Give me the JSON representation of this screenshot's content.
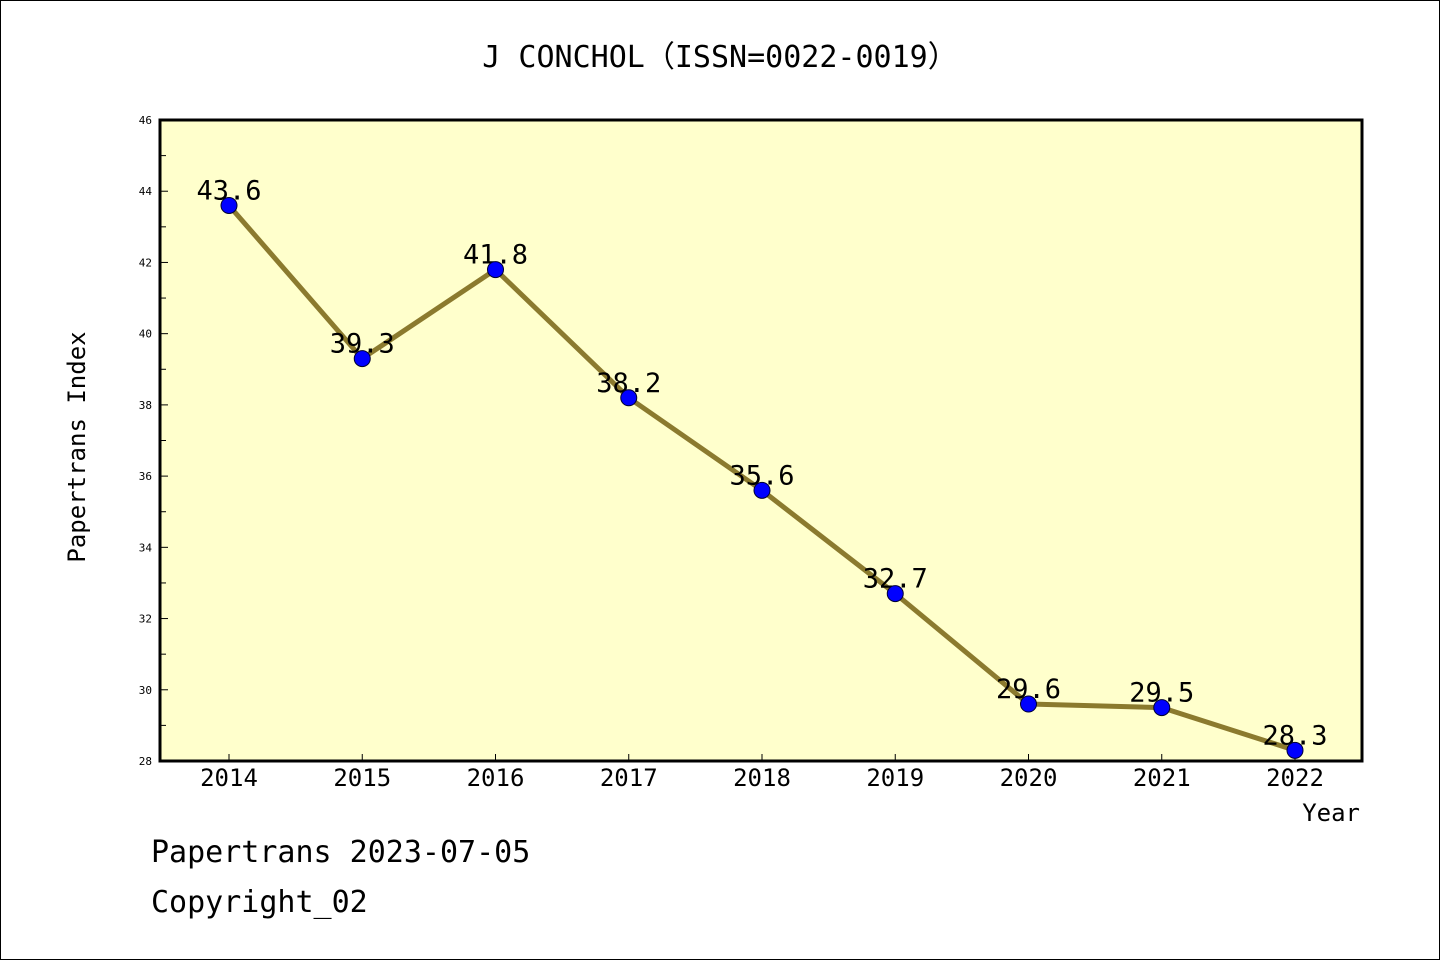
{
  "chart_data": {
    "type": "line",
    "title": "J CONCHOL（ISSN=0022-0019）",
    "xlabel": "Year",
    "ylabel": "Papertrans Index",
    "categories": [
      "2014",
      "2015",
      "2016",
      "2017",
      "2018",
      "2019",
      "2020",
      "2021",
      "2022"
    ],
    "series": [
      {
        "values": [
          43.6,
          39.3,
          41.8,
          38.2,
          35.6,
          32.7,
          29.6,
          29.5,
          28.3
        ],
        "data_labels": [
          "43.6",
          "39.3",
          "41.8",
          "38.2",
          "35.6",
          "32.7",
          "29.6",
          "29.5",
          "28.3"
        ],
        "line_color": "#8b7a2e",
        "marker_color": "#0000ff"
      }
    ],
    "ylim": [
      28,
      46
    ],
    "yticks": [
      "28",
      "30",
      "32",
      "34",
      "36",
      "38",
      "40",
      "42",
      "44",
      "46"
    ],
    "plot_background": "#ffffcc",
    "grid": false,
    "legend": "none"
  },
  "footer": {
    "line1": "Papertrans 2023-07-05",
    "line2": "Copyright_02"
  }
}
